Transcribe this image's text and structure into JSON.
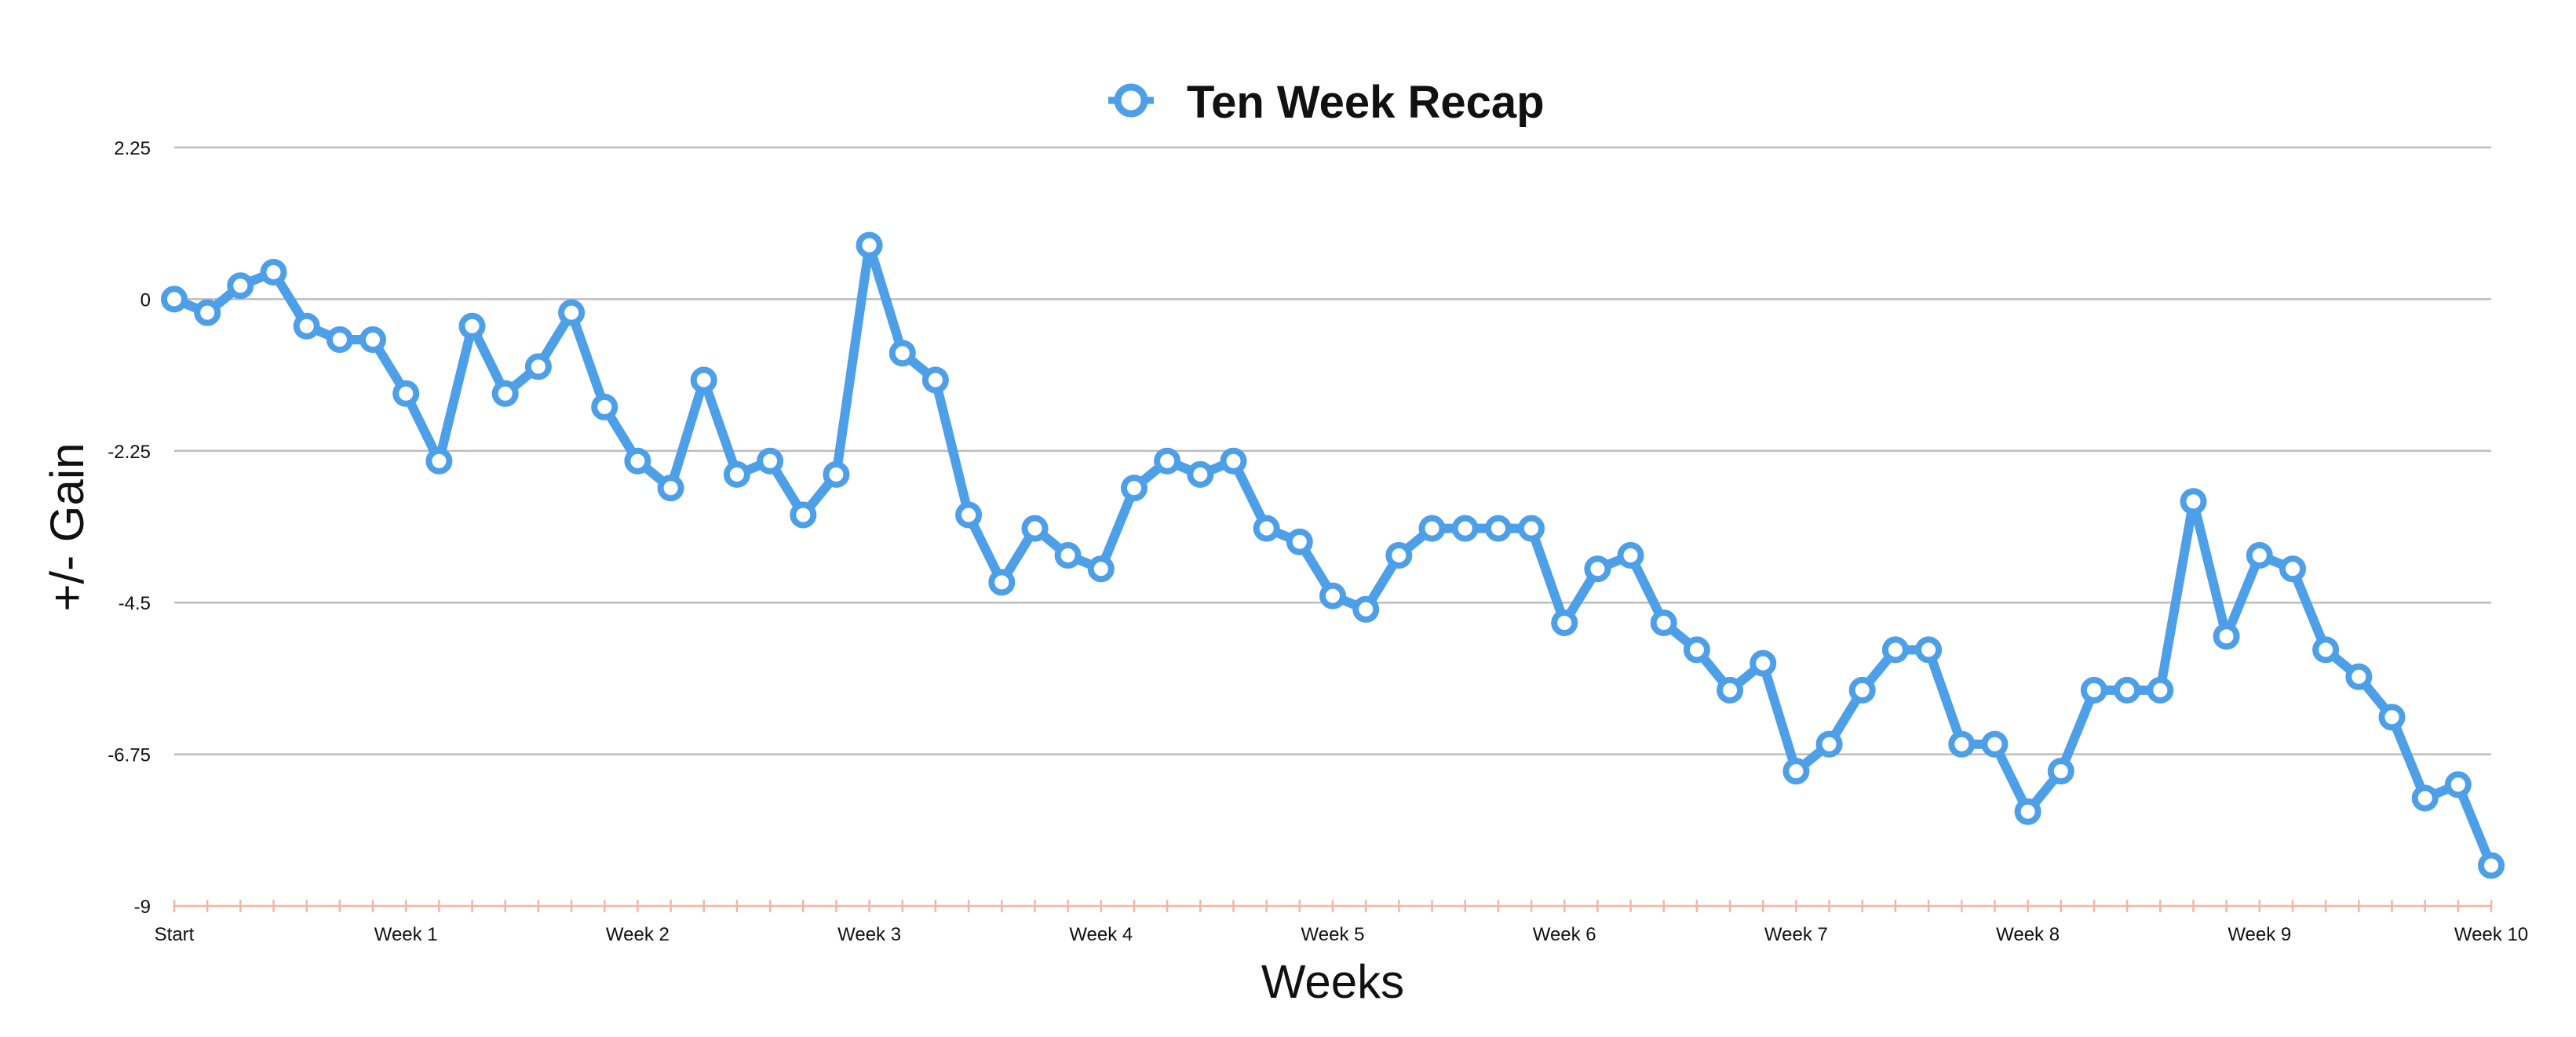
{
  "chart_data": {
    "type": "line",
    "title": "Ten Week Recap",
    "xlabel": "Weeks",
    "ylabel": "+/- Gain",
    "ylim": [
      -9,
      2.25
    ],
    "yticks": [
      2.25,
      0,
      -2.25,
      -4.5,
      -6.75,
      -9
    ],
    "yticklabels": [
      "2.25",
      "0",
      "-2.25",
      "-4.5",
      "-6.75",
      "-9"
    ],
    "xlim": [
      0,
      70
    ],
    "xticks": [
      0,
      7,
      14,
      21,
      28,
      35,
      42,
      49,
      56,
      63,
      70
    ],
    "xticklabels": [
      "Start",
      "Week 1",
      "Week 2",
      "Week 3",
      "Week 4",
      "Week 5",
      "Week 6",
      "Week 7",
      "Week 8",
      "Week 9",
      "Week 10"
    ],
    "minor_tick_step": 1,
    "grid": true,
    "legend": "top-center",
    "series": [
      {
        "name": "Ten Week Recap",
        "color": "#4d9fe8",
        "values": [
          0,
          -0.2,
          0.2,
          0.4,
          -0.4,
          -0.6,
          -0.6,
          -1.4,
          -2.4,
          -0.4,
          -1.4,
          -1.0,
          -0.2,
          -1.6,
          -2.4,
          -2.8,
          -1.2,
          -2.6,
          -2.4,
          -3.2,
          -2.6,
          0.8,
          -0.8,
          -1.2,
          -3.2,
          -4.2,
          -3.4,
          -3.8,
          -4.0,
          -2.8,
          -2.4,
          -2.6,
          -2.4,
          -3.4,
          -3.6,
          -4.4,
          -4.6,
          -3.8,
          -3.4,
          -3.4,
          -3.4,
          -3.4,
          -4.8,
          -4.0,
          -3.8,
          -4.8,
          -5.2,
          -5.8,
          -5.4,
          -7.0,
          -6.6,
          -5.8,
          -5.2,
          -5.2,
          -6.6,
          -6.6,
          -7.6,
          -7.0,
          -5.8,
          -5.8,
          -5.8,
          -3.0,
          -5.0,
          -3.8,
          -4.0,
          -5.2,
          -5.6,
          -6.2,
          -7.4,
          -7.2,
          -8.4
        ]
      }
    ]
  }
}
